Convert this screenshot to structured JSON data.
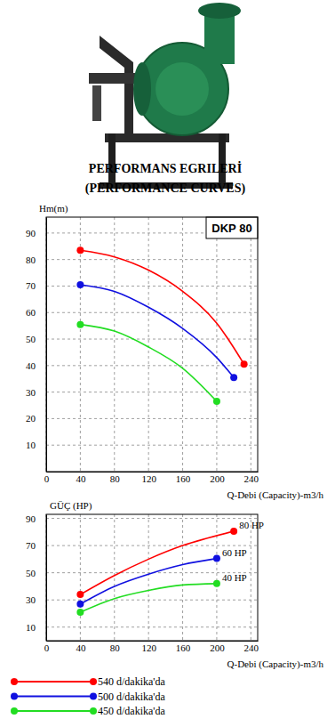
{
  "header": {
    "title": "PERFORMANS EGRILERİ",
    "subtitle": "(PERFORMANCE CURVES)"
  },
  "chart_data": [
    {
      "type": "line",
      "title": "DKP 80",
      "x_label": "Q-Debi (Capacity)-m3/h",
      "y_label": "Hm(m)",
      "xlim": [
        0,
        248
      ],
      "xticks": [
        0,
        40,
        80,
        120,
        160,
        200,
        240
      ],
      "ylim": [
        0,
        96
      ],
      "yticks": [
        10,
        20,
        30,
        40,
        50,
        60,
        70,
        80,
        90
      ],
      "grid": true,
      "series": [
        {
          "color": "#ff0000",
          "marker": "circle",
          "x": [
            40,
            80,
            120,
            160,
            200,
            232
          ],
          "values": [
            83.5,
            81,
            76,
            68,
            56,
            40.5
          ]
        },
        {
          "color": "#1010e0",
          "marker": "circle",
          "x": [
            40,
            80,
            120,
            160,
            200,
            220
          ],
          "values": [
            70.5,
            68,
            62,
            54,
            43,
            35.5
          ]
        },
        {
          "color": "#22dd22",
          "marker": "circle",
          "x": [
            40,
            80,
            120,
            160,
            200
          ],
          "values": [
            55.5,
            53,
            47,
            39,
            26.5
          ]
        }
      ]
    },
    {
      "type": "line",
      "x_label": "Q-Debi (Capacity)-m3/h",
      "y_label": "GÜÇ (HP)",
      "xlim": [
        0,
        248
      ],
      "xticks": [
        0,
        40,
        80,
        120,
        160,
        200,
        240
      ],
      "ylim": [
        0,
        93
      ],
      "yticks": [
        10,
        30,
        50,
        70,
        90
      ],
      "grid": true,
      "legend": "bottom",
      "series": [
        {
          "name": "540 d/dakika'da",
          "label": "80 HP",
          "color": "#ff0000",
          "marker": "circle",
          "x": [
            40,
            80,
            120,
            160,
            220
          ],
          "values": [
            34,
            48,
            60,
            70,
            80.5
          ]
        },
        {
          "name": "500 d/dakika'da",
          "label": "60 HP",
          "color": "#1010e0",
          "marker": "circle",
          "x": [
            40,
            80,
            120,
            160,
            200
          ],
          "values": [
            27,
            40,
            49,
            56,
            60.5
          ]
        },
        {
          "name": "450 d/dakika'da",
          "label": "40 HP",
          "color": "#22dd22",
          "marker": "circle",
          "x": [
            40,
            80,
            120,
            160,
            200
          ],
          "values": [
            21,
            31,
            37,
            41,
            42
          ]
        }
      ]
    }
  ]
}
